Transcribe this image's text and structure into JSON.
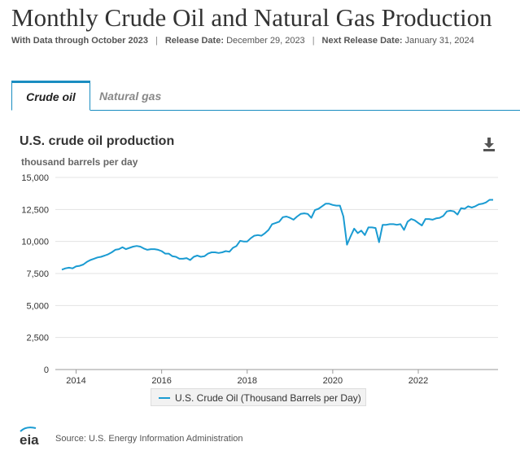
{
  "page": {
    "title": "Monthly Crude Oil and Natural Gas Production",
    "meta": {
      "data_through_label": "With Data through October 2023",
      "release_label": "Release Date:",
      "release_date": "December 29, 2023",
      "next_release_label": "Next Release Date:",
      "next_release_date": "January 31, 2024"
    }
  },
  "tabs": [
    {
      "label": "Crude oil",
      "active": true
    },
    {
      "label": "Natural gas",
      "active": false
    }
  ],
  "download_icon": "download-icon",
  "footer": {
    "logo_text": "eia",
    "source": "Source: U.S. Energy Information Administration"
  },
  "chart_data": {
    "type": "line",
    "title": "U.S. crude oil production",
    "ylabel": "thousand barrels per day",
    "xlabel": "",
    "ylim": [
      0,
      15000
    ],
    "y_ticks": [
      0,
      2500,
      5000,
      7500,
      10000,
      12500,
      15000
    ],
    "y_tick_labels": [
      "0",
      "2,500",
      "5,000",
      "7,500",
      "10,000",
      "12,500",
      "15,000"
    ],
    "x_ticks": [
      2014,
      2016,
      2018,
      2020,
      2022
    ],
    "x_tick_labels": [
      "2014",
      "2016",
      "2018",
      "2020",
      "2022"
    ],
    "x_range": [
      "2013-09",
      "2023-10"
    ],
    "grid": "horizontal",
    "legend": "bottom-center",
    "series": [
      {
        "name": "U.S. Crude Oil (Thousand Barrels per Day)",
        "color": "#1a9bd2",
        "points": [
          [
            "2013-09",
            7800
          ],
          [
            "2013-10",
            7900
          ],
          [
            "2013-11",
            7950
          ],
          [
            "2013-12",
            7900
          ],
          [
            "2014-01",
            8050
          ],
          [
            "2014-02",
            8100
          ],
          [
            "2014-03",
            8200
          ],
          [
            "2014-04",
            8400
          ],
          [
            "2014-05",
            8550
          ],
          [
            "2014-06",
            8650
          ],
          [
            "2014-07",
            8750
          ],
          [
            "2014-08",
            8800
          ],
          [
            "2014-09",
            8900
          ],
          [
            "2014-10",
            9000
          ],
          [
            "2014-11",
            9150
          ],
          [
            "2014-12",
            9350
          ],
          [
            "2015-01",
            9400
          ],
          [
            "2015-02",
            9550
          ],
          [
            "2015-03",
            9400
          ],
          [
            "2015-04",
            9500
          ],
          [
            "2015-05",
            9600
          ],
          [
            "2015-06",
            9650
          ],
          [
            "2015-07",
            9600
          ],
          [
            "2015-08",
            9450
          ],
          [
            "2015-09",
            9350
          ],
          [
            "2015-10",
            9400
          ],
          [
            "2015-11",
            9400
          ],
          [
            "2015-12",
            9350
          ],
          [
            "2016-01",
            9250
          ],
          [
            "2016-02",
            9050
          ],
          [
            "2016-03",
            9050
          ],
          [
            "2016-04",
            8850
          ],
          [
            "2016-05",
            8800
          ],
          [
            "2016-06",
            8650
          ],
          [
            "2016-07",
            8650
          ],
          [
            "2016-08",
            8700
          ],
          [
            "2016-09",
            8550
          ],
          [
            "2016-10",
            8800
          ],
          [
            "2016-11",
            8900
          ],
          [
            "2016-12",
            8800
          ],
          [
            "2017-01",
            8850
          ],
          [
            "2017-02",
            9050
          ],
          [
            "2017-03",
            9150
          ],
          [
            "2017-04",
            9150
          ],
          [
            "2017-05",
            9100
          ],
          [
            "2017-06",
            9150
          ],
          [
            "2017-07",
            9250
          ],
          [
            "2017-08",
            9200
          ],
          [
            "2017-09",
            9500
          ],
          [
            "2017-10",
            9650
          ],
          [
            "2017-11",
            10050
          ],
          [
            "2017-12",
            10000
          ],
          [
            "2018-01",
            10000
          ],
          [
            "2018-02",
            10250
          ],
          [
            "2018-03",
            10450
          ],
          [
            "2018-04",
            10500
          ],
          [
            "2018-05",
            10450
          ],
          [
            "2018-06",
            10650
          ],
          [
            "2018-07",
            10900
          ],
          [
            "2018-08",
            11350
          ],
          [
            "2018-09",
            11450
          ],
          [
            "2018-10",
            11550
          ],
          [
            "2018-11",
            11900
          ],
          [
            "2018-12",
            11950
          ],
          [
            "2019-01",
            11850
          ],
          [
            "2019-02",
            11700
          ],
          [
            "2019-03",
            11950
          ],
          [
            "2019-04",
            12150
          ],
          [
            "2019-05",
            12200
          ],
          [
            "2019-06",
            12150
          ],
          [
            "2019-07",
            11850
          ],
          [
            "2019-08",
            12450
          ],
          [
            "2019-09",
            12550
          ],
          [
            "2019-10",
            12750
          ],
          [
            "2019-11",
            12950
          ],
          [
            "2019-12",
            12950
          ],
          [
            "2020-01",
            12850
          ],
          [
            "2020-02",
            12800
          ],
          [
            "2020-03",
            12800
          ],
          [
            "2020-04",
            11950
          ],
          [
            "2020-05",
            9750
          ],
          [
            "2020-06",
            10400
          ],
          [
            "2020-07",
            11000
          ],
          [
            "2020-08",
            10650
          ],
          [
            "2020-09",
            10850
          ],
          [
            "2020-10",
            10500
          ],
          [
            "2020-11",
            11100
          ],
          [
            "2020-12",
            11100
          ],
          [
            "2021-01",
            11050
          ],
          [
            "2021-02",
            9950
          ],
          [
            "2021-03",
            11300
          ],
          [
            "2021-04",
            11300
          ],
          [
            "2021-05",
            11350
          ],
          [
            "2021-06",
            11350
          ],
          [
            "2021-07",
            11300
          ],
          [
            "2021-08",
            11350
          ],
          [
            "2021-09",
            10900
          ],
          [
            "2021-10",
            11550
          ],
          [
            "2021-11",
            11750
          ],
          [
            "2021-12",
            11650
          ],
          [
            "2022-01",
            11450
          ],
          [
            "2022-02",
            11250
          ],
          [
            "2022-03",
            11750
          ],
          [
            "2022-04",
            11750
          ],
          [
            "2022-05",
            11700
          ],
          [
            "2022-06",
            11800
          ],
          [
            "2022-07",
            11850
          ],
          [
            "2022-08",
            12000
          ],
          [
            "2022-09",
            12350
          ],
          [
            "2022-10",
            12400
          ],
          [
            "2022-11",
            12350
          ],
          [
            "2022-12",
            12100
          ],
          [
            "2023-01",
            12600
          ],
          [
            "2023-02",
            12550
          ],
          [
            "2023-03",
            12750
          ],
          [
            "2023-04",
            12650
          ],
          [
            "2023-05",
            12750
          ],
          [
            "2023-06",
            12900
          ],
          [
            "2023-07",
            12950
          ],
          [
            "2023-08",
            13050
          ],
          [
            "2023-09",
            13250
          ],
          [
            "2023-10",
            13250
          ]
        ]
      }
    ]
  }
}
